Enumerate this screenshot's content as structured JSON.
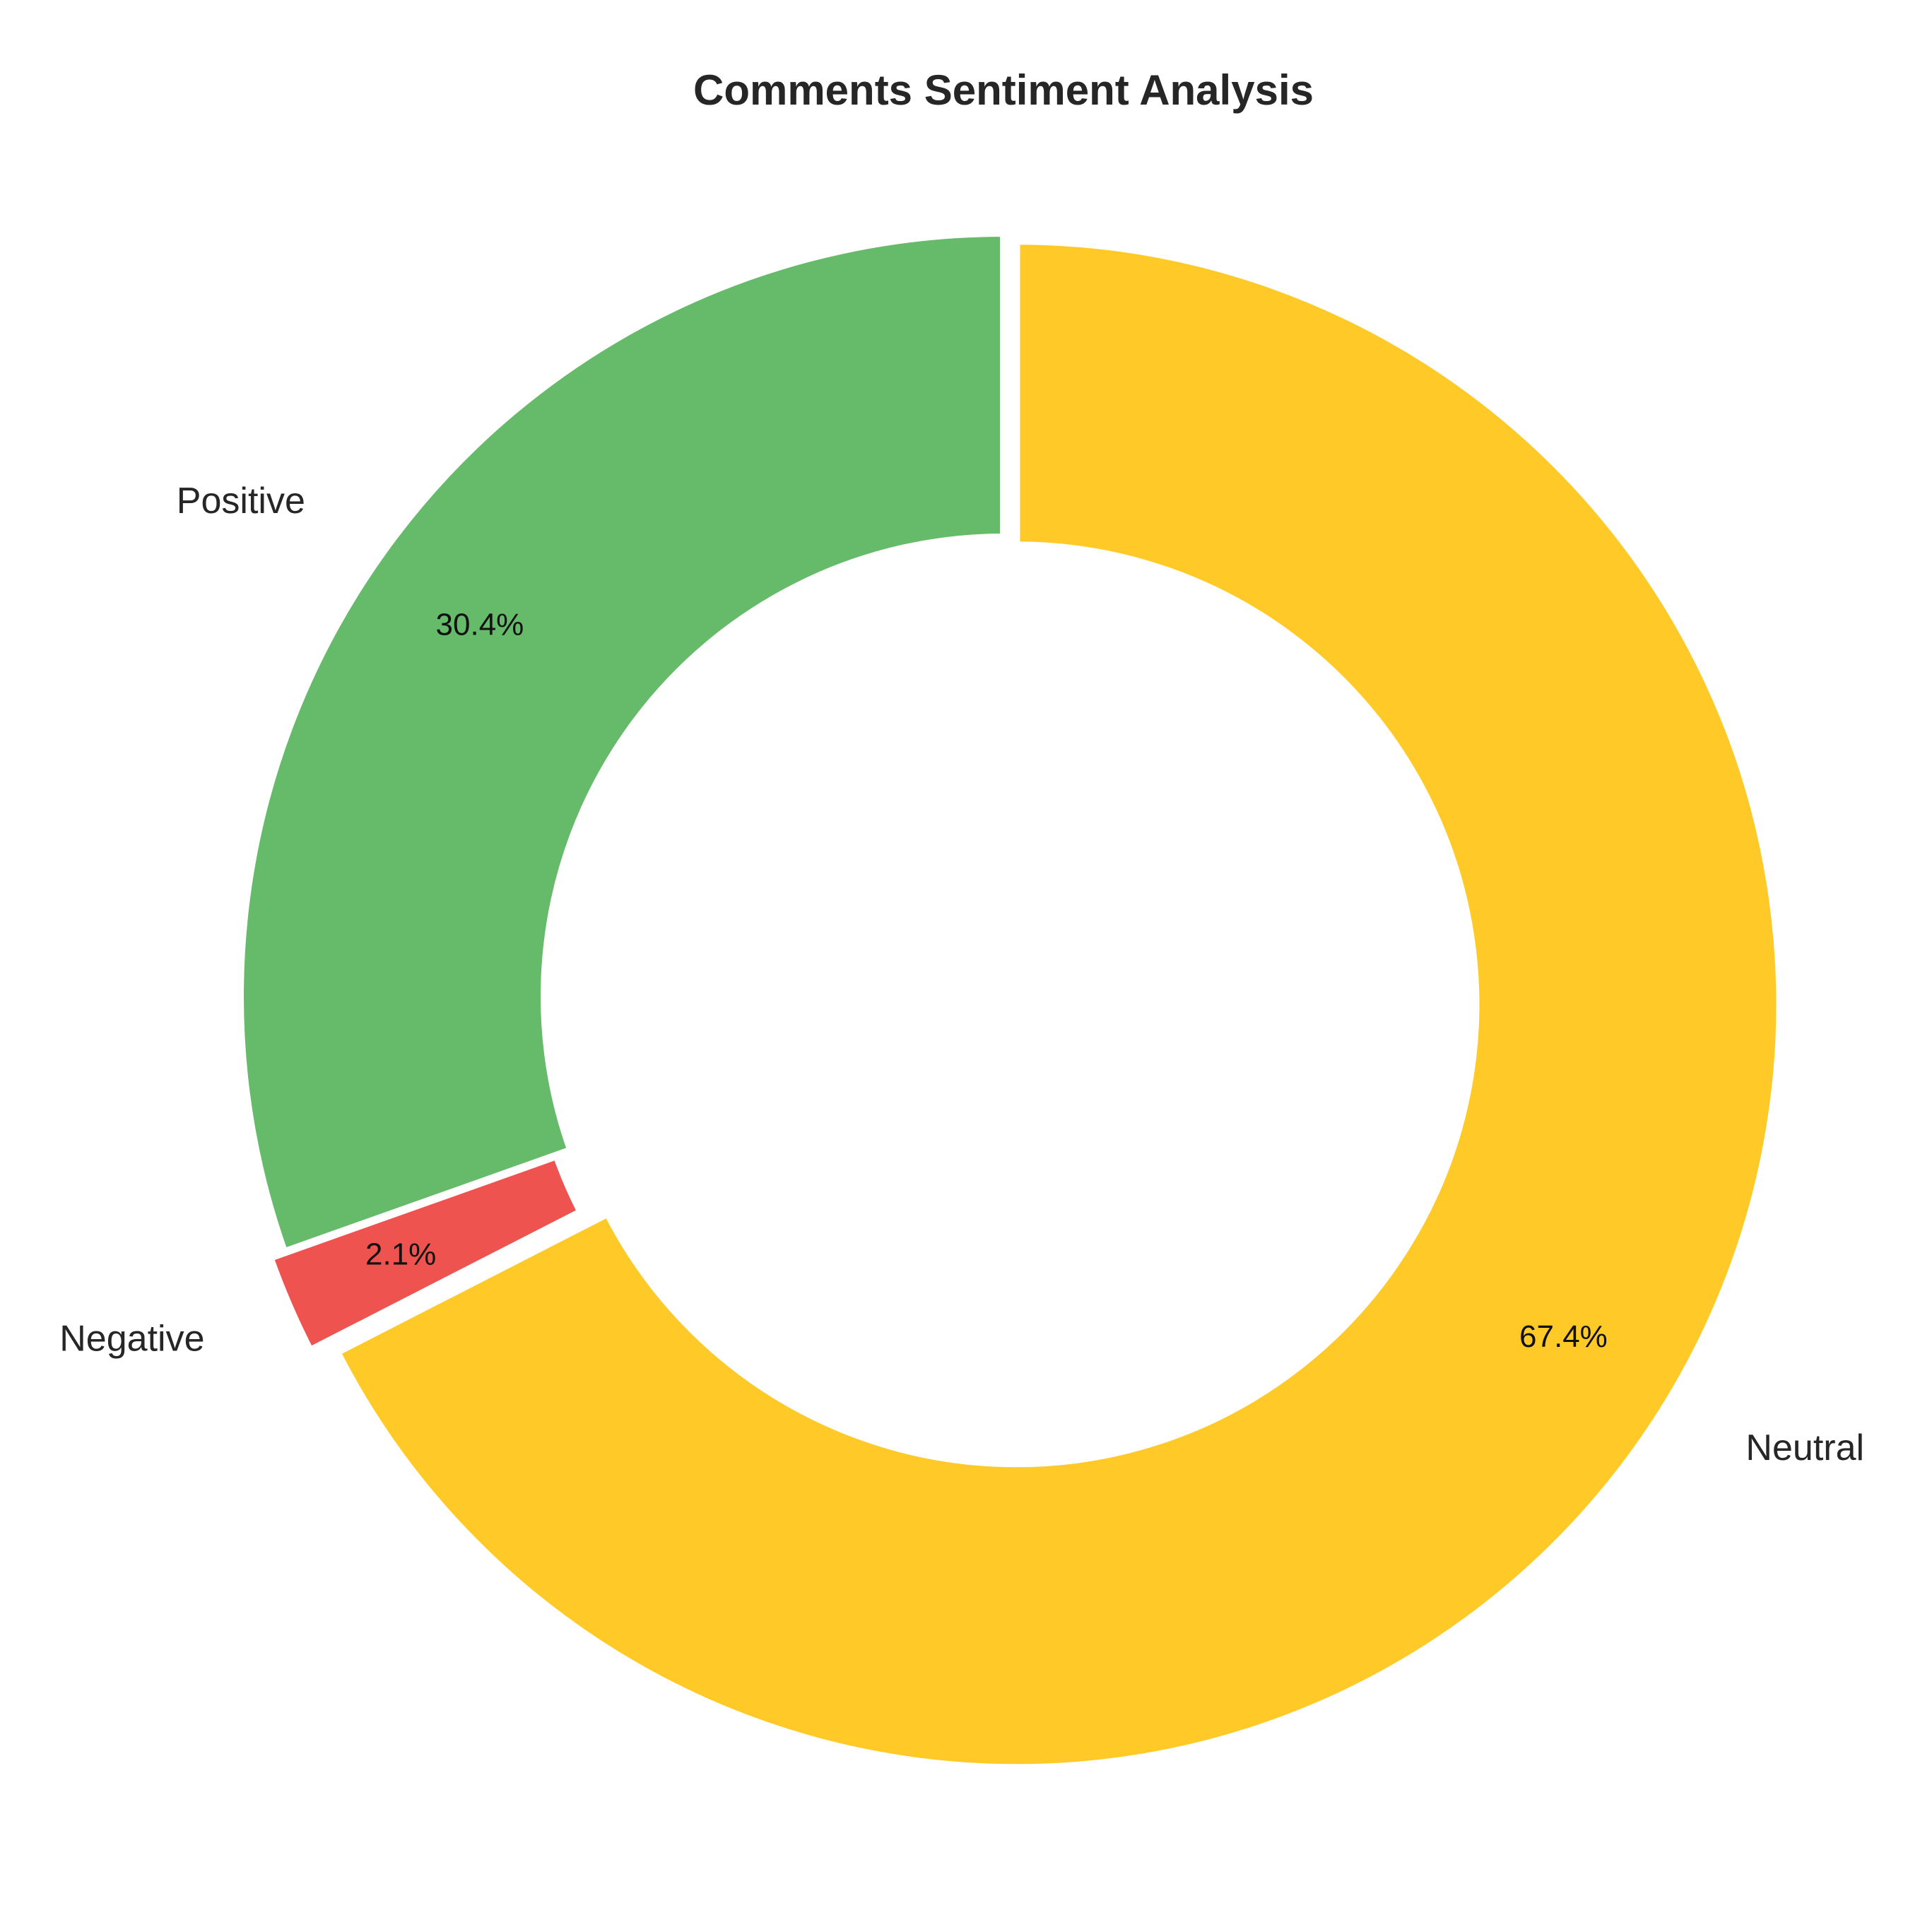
{
  "chart_data": {
    "type": "pie",
    "style": "donut",
    "title": "Comments Sentiment Analysis",
    "start_angle_deg": 90,
    "direction": "counterclockwise",
    "slices": [
      {
        "label": "Positive",
        "value": 30.4,
        "pct_label": "30.4%",
        "color": "#66BB6A",
        "explode": 0.0
      },
      {
        "label": "Negative",
        "value": 2.1,
        "pct_label": "2.1%",
        "color": "#EF5350",
        "explode": 0.02
      },
      {
        "label": "Neutral",
        "value": 67.4,
        "pct_label": "67.4%",
        "color": "#FFCA28",
        "explode": 0.02
      }
    ],
    "legend": "none",
    "grid": false
  }
}
